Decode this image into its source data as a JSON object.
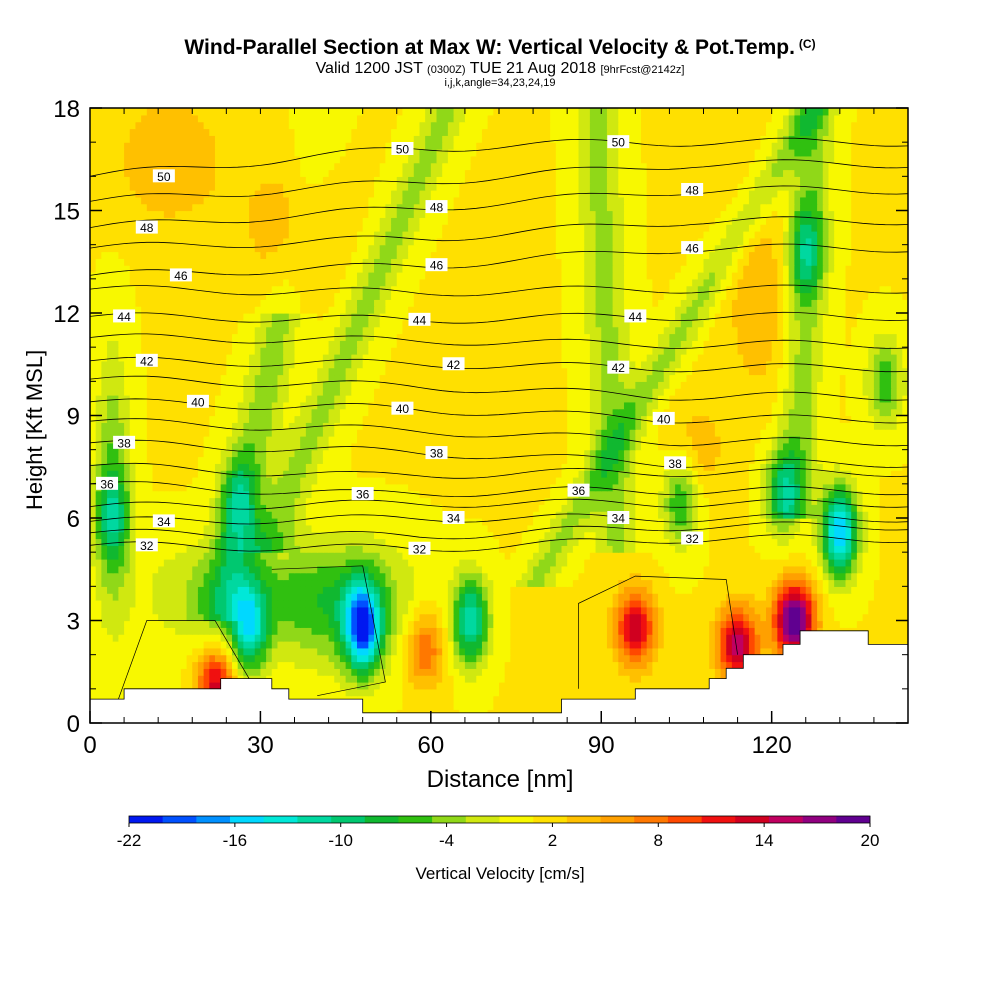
{
  "header": {
    "title": "Wind-Parallel Section at Max W: Vertical Velocity & Pot.Temp.",
    "copyright": "(C)",
    "valid_prefix": "Valid 1200 JST",
    "valid_utc": "(0300Z)",
    "valid_date": "TUE 21 Aug 2018",
    "forecast": "[9hrFcst@2142z]",
    "indices": "i,j,k,angle=34,23,24,19"
  },
  "colorbar": {
    "label": "Vertical Velocity [cm/s]",
    "tick_labels": [
      "-22",
      "-16",
      "-10",
      "-4",
      "2",
      "8",
      "14",
      "20"
    ],
    "colors": [
      "#0018f0",
      "#0050ff",
      "#0090ff",
      "#00d8ff",
      "#00e8d8",
      "#00d8a0",
      "#00c870",
      "#10b830",
      "#30c010",
      "#90d818",
      "#d0e810",
      "#f8f800",
      "#ffe000",
      "#ffc000",
      "#ffa000",
      "#ff7800",
      "#ff4800",
      "#f01010",
      "#d00020",
      "#c00060",
      "#900080",
      "#600090"
    ]
  },
  "chart_data": {
    "type": "heatmap",
    "title": "Wind-Parallel Section at Max W: Vertical Velocity & Pot.Temp.",
    "xlabel": "Distance [nm]",
    "ylabel": "Height [Kft MSL]",
    "xlim": [
      0,
      144
    ],
    "ylim": [
      0,
      18
    ],
    "x_ticks": [
      "0",
      "30",
      "60",
      "90",
      "120"
    ],
    "y_ticks": [
      "0",
      "3",
      "6",
      "9",
      "12",
      "15",
      "18"
    ],
    "variable": "Vertical Velocity [cm/s]",
    "value_range": [
      -22,
      20
    ],
    "updraft_cores": [
      {
        "x": 22,
        "y": 1.2,
        "w": 14
      },
      {
        "x": 59,
        "y": 2.2,
        "w": 8
      },
      {
        "x": 96,
        "y": 2.8,
        "w": 13
      },
      {
        "x": 114,
        "y": 2.3,
        "w": 15
      },
      {
        "x": 124,
        "y": 3.0,
        "w": 20
      }
    ],
    "downdraft_cores": [
      {
        "x": 48,
        "y": 2.8,
        "w": -18
      },
      {
        "x": 67,
        "y": 3.0,
        "w": -13
      },
      {
        "x": 28,
        "y": 2.8,
        "w": -12
      },
      {
        "x": 132,
        "y": 5.6,
        "w": -17
      },
      {
        "x": 26,
        "y": 6.5,
        "w": -8
      },
      {
        "x": 104,
        "y": 6.5,
        "w": -8
      },
      {
        "x": 122,
        "y": 6.8,
        "w": -9
      },
      {
        "x": 126,
        "y": 13.8,
        "w": -8
      },
      {
        "x": 4,
        "y": 6.0,
        "w": -7
      },
      {
        "x": 140,
        "y": 10.0,
        "w": -7
      }
    ],
    "terrain": [
      [
        0,
        0.7
      ],
      [
        6,
        0.7
      ],
      [
        6,
        1.0
      ],
      [
        23,
        1.0
      ],
      [
        23,
        1.3
      ],
      [
        32,
        1.3
      ],
      [
        32,
        1.0
      ],
      [
        35,
        1.0
      ],
      [
        35,
        0.7
      ],
      [
        48,
        0.7
      ],
      [
        48,
        0.3
      ],
      [
        83,
        0.3
      ],
      [
        83,
        0.7
      ],
      [
        96,
        0.7
      ],
      [
        96,
        1.0
      ],
      [
        109,
        1.0
      ],
      [
        109,
        1.3
      ],
      [
        112,
        1.3
      ],
      [
        112,
        1.6
      ],
      [
        115,
        1.6
      ],
      [
        115,
        2.0
      ],
      [
        122,
        2.0
      ],
      [
        122,
        2.3
      ],
      [
        125,
        2.3
      ],
      [
        125,
        2.7
      ],
      [
        137,
        2.7
      ],
      [
        137,
        2.3
      ],
      [
        144,
        2.3
      ]
    ],
    "isentropes": [
      {
        "value": 32,
        "x": 10,
        "y": 5.2,
        "x2": 58,
        "y2": 5.1,
        "x3": 106,
        "y3": 5.4
      },
      {
        "value": 34,
        "x": 13,
        "y": 5.9,
        "x2": 64,
        "y2": 6.0,
        "x3": 93,
        "y3": 6.0
      },
      {
        "value": 36,
        "x": 3,
        "y": 7.0,
        "x2": 48,
        "y2": 6.7,
        "x3": 86,
        "y3": 6.8
      },
      {
        "value": 38,
        "x": 6,
        "y": 8.2,
        "x2": 61,
        "y2": 7.9,
        "x3": 103,
        "y3": 7.6
      },
      {
        "value": 40,
        "x": 19,
        "y": 9.4,
        "x2": 55,
        "y2": 9.2,
        "x3": 101,
        "y3": 8.9
      },
      {
        "value": 42,
        "x": 10,
        "y": 10.6,
        "x2": 64,
        "y2": 10.5,
        "x3": 93,
        "y3": 10.4
      },
      {
        "value": 44,
        "x": 6,
        "y": 11.9,
        "x2": 58,
        "y2": 11.8,
        "x3": 96,
        "y3": 11.9
      },
      {
        "value": 46,
        "x": 16,
        "y": 13.1,
        "x2": 61,
        "y2": 13.4,
        "x3": 106,
        "y3": 13.9
      },
      {
        "value": 48,
        "x": 10,
        "y": 14.5,
        "x2": 61,
        "y2": 15.1,
        "x3": 106,
        "y3": 15.6
      },
      {
        "value": 50,
        "x": 13,
        "y": 16.0,
        "x2": 55,
        "y2": 16.8,
        "x3": 93,
        "y3": 17.0
      }
    ]
  }
}
